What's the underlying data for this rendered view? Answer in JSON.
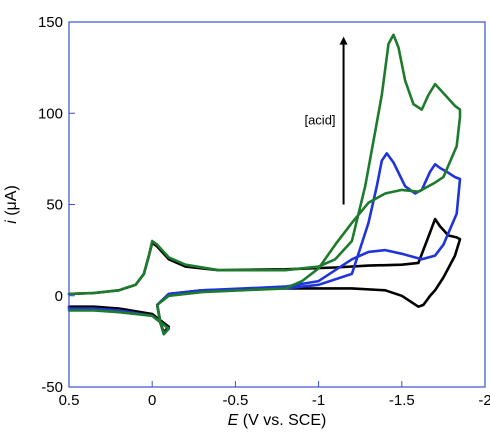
{
  "chart_data": {
    "type": "line",
    "title": "",
    "xlabel_italic": "E",
    "xlabel_rest": " (V vs. SCE)",
    "ylabel_italic": "i",
    "ylabel_rest": " (μA)",
    "xlim": [
      0.5,
      -2
    ],
    "ylim": [
      -50,
      150
    ],
    "x_ticks": [
      0.5,
      0,
      -0.5,
      -1,
      -1.5,
      -2
    ],
    "x_tick_labels": [
      "0.5",
      "0",
      "-0.5",
      "-1",
      "-1.5",
      "-2"
    ],
    "y_ticks": [
      -50,
      0,
      50,
      100,
      150
    ],
    "y_tick_labels": [
      "-50",
      "0",
      "50",
      "100",
      "150"
    ],
    "grid": false,
    "axis_color": "#3a4fd6",
    "annotation": {
      "text": "[acid]",
      "arrow_from": [
        -1.15,
        50
      ],
      "arrow_to": [
        -1.15,
        142
      ]
    },
    "series": [
      {
        "color": "#000000",
        "points": [
          [
            0.5,
            1
          ],
          [
            0.35,
            1.5
          ],
          [
            0.2,
            3
          ],
          [
            0.1,
            6
          ],
          [
            0.05,
            12
          ],
          [
            0.02,
            22
          ],
          [
            0.0,
            29
          ],
          [
            -0.03,
            27
          ],
          [
            -0.1,
            20
          ],
          [
            -0.2,
            16
          ],
          [
            -0.4,
            14
          ],
          [
            -0.8,
            14.5
          ],
          [
            -1.1,
            15.5
          ],
          [
            -1.3,
            16.5
          ],
          [
            -1.5,
            17
          ],
          [
            -1.6,
            18
          ],
          [
            -1.65,
            30
          ],
          [
            -1.7,
            42
          ],
          [
            -1.73,
            38
          ],
          [
            -1.78,
            33
          ],
          [
            -1.83,
            32
          ],
          [
            -1.85,
            31
          ],
          [
            -1.82,
            22
          ],
          [
            -1.75,
            10
          ],
          [
            -1.7,
            3
          ],
          [
            -1.67,
            0
          ],
          [
            -1.63,
            -5
          ],
          [
            -1.6,
            -6
          ],
          [
            -1.5,
            0
          ],
          [
            -1.4,
            3
          ],
          [
            -1.2,
            4
          ],
          [
            -0.8,
            4
          ],
          [
            -0.3,
            3
          ],
          [
            -0.1,
            1
          ],
          [
            -0.03,
            -5
          ],
          [
            -0.05,
            -15
          ],
          [
            -0.07,
            -20
          ],
          [
            -0.1,
            -17
          ],
          [
            0,
            -10
          ],
          [
            0.2,
            -7
          ],
          [
            0.35,
            -6
          ],
          [
            0.5,
            -6
          ]
        ]
      },
      {
        "color": "#1f35d9",
        "points": [
          [
            -0.8,
            4
          ],
          [
            -1.0,
            6
          ],
          [
            -1.2,
            12
          ],
          [
            -1.3,
            40
          ],
          [
            -1.35,
            60
          ],
          [
            -1.38,
            74
          ],
          [
            -1.41,
            78
          ],
          [
            -1.45,
            73
          ],
          [
            -1.52,
            60
          ],
          [
            -1.58,
            56
          ],
          [
            -1.62,
            58
          ],
          [
            -1.67,
            68
          ],
          [
            -1.7,
            72
          ],
          [
            -1.73,
            70
          ],
          [
            -1.77,
            68
          ],
          [
            -1.82,
            65
          ],
          [
            -1.85,
            64
          ],
          [
            -1.83,
            45
          ],
          [
            -1.75,
            28
          ],
          [
            -1.7,
            22
          ],
          [
            -1.62,
            20
          ],
          [
            -1.5,
            23
          ],
          [
            -1.4,
            25
          ],
          [
            -1.3,
            24
          ],
          [
            -1.2,
            20
          ],
          [
            -1.1,
            14
          ],
          [
            -1.0,
            8
          ],
          [
            -0.8,
            5
          ],
          [
            -0.3,
            3
          ],
          [
            -0.1,
            1
          ],
          [
            -0.03,
            -5
          ],
          [
            -0.05,
            -15
          ],
          [
            -0.07,
            -21
          ],
          [
            -0.1,
            -18
          ],
          [
            0,
            -11
          ],
          [
            0.2,
            -8
          ],
          [
            0.35,
            -7
          ],
          [
            0.5,
            -7
          ]
        ]
      },
      {
        "color": "#1e7a2c",
        "points": [
          [
            0.5,
            1
          ],
          [
            0.35,
            1.5
          ],
          [
            0.2,
            3
          ],
          [
            0.1,
            6
          ],
          [
            0.05,
            12
          ],
          [
            0.02,
            22
          ],
          [
            0.0,
            30
          ],
          [
            -0.03,
            28
          ],
          [
            -0.1,
            21
          ],
          [
            -0.2,
            17
          ],
          [
            -0.4,
            14
          ],
          [
            -0.8,
            14
          ],
          [
            -1.0,
            16
          ],
          [
            -1.1,
            20
          ],
          [
            -1.2,
            30
          ],
          [
            -1.28,
            60
          ],
          [
            -1.34,
            90
          ],
          [
            -1.38,
            110
          ],
          [
            -1.42,
            138
          ],
          [
            -1.45,
            143
          ],
          [
            -1.48,
            136
          ],
          [
            -1.52,
            118
          ],
          [
            -1.57,
            105
          ],
          [
            -1.62,
            102
          ],
          [
            -1.66,
            110
          ],
          [
            -1.7,
            116
          ],
          [
            -1.73,
            113
          ],
          [
            -1.78,
            108
          ],
          [
            -1.82,
            104
          ],
          [
            -1.85,
            102
          ],
          [
            -1.85,
            98
          ],
          [
            -1.83,
            82
          ],
          [
            -1.75,
            65
          ],
          [
            -1.7,
            62
          ],
          [
            -1.6,
            57
          ],
          [
            -1.5,
            58
          ],
          [
            -1.4,
            56
          ],
          [
            -1.3,
            51
          ],
          [
            -1.2,
            40
          ],
          [
            -1.1,
            28
          ],
          [
            -1.0,
            15
          ],
          [
            -0.9,
            8
          ],
          [
            -0.8,
            4
          ],
          [
            -0.3,
            2
          ],
          [
            -0.1,
            0
          ],
          [
            -0.03,
            -5
          ],
          [
            -0.05,
            -15
          ],
          [
            -0.07,
            -21
          ],
          [
            -0.1,
            -18
          ],
          [
            0,
            -11
          ],
          [
            0.2,
            -9
          ],
          [
            0.35,
            -8
          ],
          [
            0.5,
            -8
          ]
        ]
      }
    ]
  }
}
